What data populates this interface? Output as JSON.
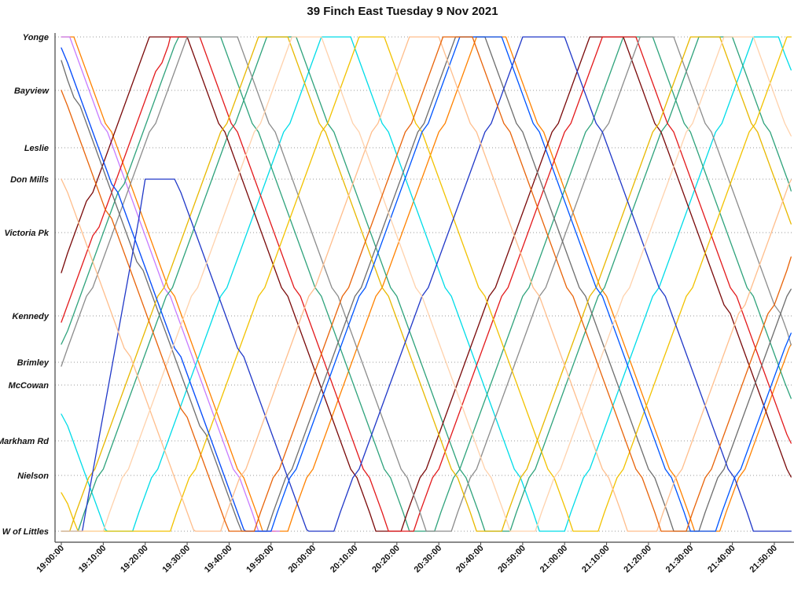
{
  "chart_data": {
    "type": "line",
    "title": "39 Finch East Tuesday 9 Nov 2021",
    "xlabel": "",
    "ylabel": "",
    "legend": "none",
    "grid": "dotted-horizontal-per-stop",
    "x_axis": {
      "tick_labels": [
        "19:00:00",
        "19:10:00",
        "19:20:00",
        "19:30:00",
        "19:40:00",
        "19:50:00",
        "20:00:00",
        "20:10:00",
        "20:20:00",
        "20:30:00",
        "20:40:00",
        "20:50:00",
        "21:00:00",
        "21:10:00",
        "21:20:00",
        "21:30:00",
        "21:40:00",
        "21:50:00"
      ],
      "tick_minutes": [
        0,
        10,
        20,
        30,
        40,
        50,
        60,
        70,
        80,
        90,
        100,
        110,
        120,
        130,
        140,
        150,
        160,
        170
      ],
      "window_minutes": [
        0,
        174
      ]
    },
    "y_axis": {
      "stops": [
        {
          "name": "Yonge",
          "d": 0
        },
        {
          "name": "Bayview",
          "d": 68
        },
        {
          "name": "Leslie",
          "d": 141
        },
        {
          "name": "Don Mills",
          "d": 181
        },
        {
          "name": "Victoria Pk",
          "d": 249
        },
        {
          "name": "Kennedy",
          "d": 355
        },
        {
          "name": "Brimley",
          "d": 414
        },
        {
          "name": "McCowan",
          "d": 443
        },
        {
          "name": "Markham Rd",
          "d": 514
        },
        {
          "name": "Nielson",
          "d": 558
        },
        {
          "name": "W of Littles",
          "d": 629
        }
      ],
      "d_range": [
        0,
        629
      ]
    },
    "series": [
      {
        "name": "bus-orange",
        "color": "#FF8200",
        "points": [
          [
            0,
            0
          ],
          [
            3,
            0
          ],
          [
            48,
            629
          ],
          [
            54,
            629
          ],
          [
            99,
            0
          ],
          [
            106,
            0
          ],
          [
            151,
            629
          ],
          [
            157,
            629
          ],
          [
            174,
            391
          ]
        ]
      },
      {
        "name": "bus-violet",
        "color": "#C77CFF",
        "points": [
          [
            0,
            0
          ],
          [
            2,
            0
          ],
          [
            47,
            629
          ],
          [
            52,
            629
          ]
        ]
      },
      {
        "name": "bus-orchid",
        "color": "#EE7CC8",
        "points": [
          [
            0,
            14
          ],
          [
            44,
            629
          ],
          [
            51,
            629
          ]
        ]
      },
      {
        "name": "bus-cyan",
        "color": "#00DCE8",
        "points": [
          [
            0,
            480
          ],
          [
            11,
            629
          ],
          [
            17,
            629
          ],
          [
            62,
            0
          ],
          [
            69,
            0
          ],
          [
            114,
            629
          ],
          [
            120,
            629
          ],
          [
            165,
            0
          ],
          [
            171,
            0
          ],
          [
            174,
            42
          ]
        ]
      },
      {
        "name": "bus-seagreen",
        "color": "#2FA37C",
        "points": [
          [
            0,
            391
          ],
          [
            28,
            0
          ],
          [
            38,
            0
          ],
          [
            83,
            629
          ],
          [
            89,
            629
          ],
          [
            134,
            0
          ],
          [
            141,
            0
          ],
          [
            174,
            460
          ]
        ]
      },
      {
        "name": "bus-seagreen-2",
        "color": "#2FA37C",
        "points": [
          [
            0,
            629
          ],
          [
            4,
            629
          ],
          [
            49,
            0
          ],
          [
            56,
            0
          ],
          [
            101,
            629
          ],
          [
            107,
            629
          ],
          [
            152,
            0
          ],
          [
            160,
            0
          ],
          [
            174,
            196
          ]
        ]
      },
      {
        "name": "bus-maroon",
        "color": "#7A0A0A",
        "points": [
          [
            0,
            300
          ],
          [
            21,
            0
          ],
          [
            30,
            0
          ],
          [
            75,
            629
          ],
          [
            81,
            629
          ],
          [
            126,
            0
          ],
          [
            134,
            0
          ],
          [
            174,
            560
          ]
        ]
      },
      {
        "name": "bus-red",
        "color": "#E31A1C",
        "points": [
          [
            0,
            363
          ],
          [
            26,
            0
          ],
          [
            33,
            0
          ],
          [
            78,
            629
          ],
          [
            84,
            629
          ],
          [
            129,
            0
          ],
          [
            137,
            0
          ],
          [
            174,
            517
          ]
        ]
      },
      {
        "name": "bus-gray",
        "color": "#8C8C8C",
        "points": [
          [
            0,
            419
          ],
          [
            30,
            0
          ],
          [
            42,
            0
          ],
          [
            87,
            629
          ],
          [
            93,
            629
          ],
          [
            138,
            0
          ],
          [
            146,
            0
          ],
          [
            174,
            392
          ]
        ]
      },
      {
        "name": "bus-gray-2",
        "color": "#6E6E6E",
        "points": [
          [
            0,
            30
          ],
          [
            43,
            629
          ],
          [
            49,
            629
          ],
          [
            94,
            0
          ],
          [
            101,
            0
          ],
          [
            146,
            629
          ],
          [
            152,
            629
          ],
          [
            174,
            321
          ]
        ]
      },
      {
        "name": "bus-gold",
        "color": "#F2C200",
        "points": [
          [
            0,
            580
          ],
          [
            4,
            629
          ],
          [
            26,
            629
          ],
          [
            71,
            0
          ],
          [
            77,
            0
          ],
          [
            122,
            629
          ],
          [
            128,
            629
          ],
          [
            173,
            0
          ],
          [
            174,
            0
          ]
        ]
      },
      {
        "name": "bus-gold-2",
        "color": "#E8B800",
        "points": [
          [
            0,
            629
          ],
          [
            2,
            629
          ],
          [
            47,
            0
          ],
          [
            54,
            0
          ],
          [
            99,
            629
          ],
          [
            105,
            629
          ],
          [
            150,
            0
          ],
          [
            157,
            0
          ],
          [
            174,
            238
          ]
        ]
      },
      {
        "name": "bus-blue",
        "color": "#2038C8",
        "points": [
          [
            0,
            629
          ],
          [
            5,
            629
          ],
          [
            20,
            181
          ],
          [
            27,
            181
          ],
          [
            59,
            629
          ],
          [
            65,
            629
          ],
          [
            110,
            0
          ],
          [
            120,
            0
          ],
          [
            165,
            629
          ],
          [
            174,
            629
          ]
        ]
      },
      {
        "name": "bus-brightblue",
        "color": "#0055FF",
        "points": [
          [
            0,
            14
          ],
          [
            44,
            629
          ],
          [
            50,
            629
          ],
          [
            95,
            0
          ],
          [
            105,
            0
          ],
          [
            150,
            629
          ],
          [
            156,
            629
          ],
          [
            174,
            377
          ]
        ]
      },
      {
        "name": "bus-peach",
        "color": "#FFBE8C",
        "points": [
          [
            0,
            181
          ],
          [
            32,
            629
          ],
          [
            38,
            629
          ],
          [
            83,
            0
          ],
          [
            90,
            0
          ],
          [
            135,
            629
          ],
          [
            142,
            629
          ],
          [
            174,
            182
          ]
        ]
      },
      {
        "name": "bus-peach-2",
        "color": "#FFD2AC",
        "points": [
          [
            0,
            629
          ],
          [
            10,
            629
          ],
          [
            55,
            0
          ],
          [
            62,
            0
          ],
          [
            107,
            629
          ],
          [
            113,
            629
          ],
          [
            158,
            0
          ],
          [
            165,
            0
          ],
          [
            174,
            126
          ]
        ]
      },
      {
        "name": "bus-orangered",
        "color": "#E8640A",
        "points": [
          [
            0,
            68
          ],
          [
            40,
            629
          ],
          [
            46,
            629
          ],
          [
            91,
            0
          ],
          [
            98,
            0
          ],
          [
            143,
            629
          ],
          [
            149,
            629
          ],
          [
            174,
            280
          ]
        ]
      }
    ],
    "plot_style": {
      "line_width": 1.3,
      "gridline_color": "#999999",
      "axis_color": "#444444",
      "background": "#ffffff"
    }
  }
}
